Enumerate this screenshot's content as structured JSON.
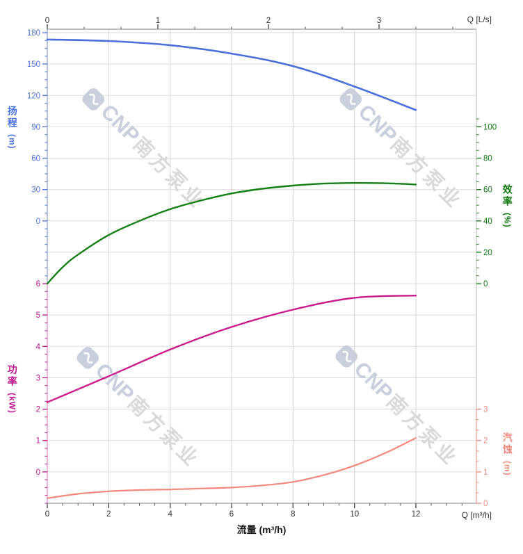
{
  "page": {
    "background": "#ffffff"
  },
  "watermark": {
    "logo_symbol": "∽",
    "logo_text": "CNP",
    "brand_text": "南方泵业",
    "color_logo": "#c9cfdc",
    "color_brand": "#d9d9d9"
  },
  "axes": {
    "x_top": {
      "label": "Q [L/s]",
      "ticks": [
        "0",
        "1",
        "2",
        "3"
      ],
      "tick_color": "#333333"
    },
    "x_bottom": {
      "label": "Q [m³/h]",
      "title": "流量 (m³/h)",
      "ticks": [
        "0",
        "2",
        "4",
        "6",
        "8",
        "10",
        "12"
      ],
      "tick_color": "#333333"
    },
    "y_head": {
      "name": "扬程",
      "unit": "(m)",
      "ticks": [
        "180",
        "150",
        "120",
        "90",
        "60",
        "30",
        "0"
      ],
      "color": "#4a72e0",
      "range": [
        0,
        180
      ]
    },
    "y_efficiency": {
      "name": "效率",
      "unit": "(%)",
      "ticks": [
        "100",
        "80",
        "60",
        "40",
        "20",
        "0"
      ],
      "color": "#0f7a0f",
      "range": [
        0,
        100
      ]
    },
    "y_power": {
      "name": "功率",
      "unit": "(kW)",
      "ticks": [
        "6",
        "5",
        "4",
        "3",
        "2",
        "1",
        "0"
      ],
      "color": "#c0148e",
      "range": [
        0,
        6
      ]
    },
    "y_npsh": {
      "name": "汽蚀",
      "unit": "(m)",
      "ticks": [
        "3",
        "2",
        "1",
        "0"
      ],
      "color": "#f4897b",
      "range": [
        0,
        3
      ]
    }
  },
  "chart_data": {
    "type": "line",
    "x_unit_bottom": "m³/h",
    "x_unit_top": "L/s",
    "x_range_m3h": [
      0,
      13.97
    ],
    "x_ticks_bottom": [
      0,
      2,
      4,
      6,
      8,
      10,
      12
    ],
    "x_ticks_top_Ls": [
      0,
      1,
      2,
      3
    ],
    "grid": true,
    "series": [
      {
        "name": "扬程 (Head)",
        "axis": "head",
        "unit": "m",
        "color": "#4a6fdc",
        "points": [
          [
            0,
            173.5
          ],
          [
            2,
            172
          ],
          [
            4,
            168
          ],
          [
            6,
            160
          ],
          [
            8,
            148
          ],
          [
            10,
            128.5
          ],
          [
            12,
            106
          ]
        ]
      },
      {
        "name": "效率 (Efficiency)",
        "axis": "eff",
        "unit": "%",
        "color": "#128012",
        "points": [
          [
            0,
            0
          ],
          [
            0.5,
            10.5
          ],
          [
            1,
            18.5
          ],
          [
            2,
            31
          ],
          [
            3,
            40
          ],
          [
            4,
            47.5
          ],
          [
            5,
            53
          ],
          [
            6,
            57.5
          ],
          [
            7,
            60.5
          ],
          [
            8,
            62.5
          ],
          [
            9,
            63.8
          ],
          [
            10,
            64.2
          ],
          [
            11,
            64
          ],
          [
            12,
            63.2
          ]
        ]
      },
      {
        "name": "功率 (Power)",
        "axis": "power",
        "unit": "kW",
        "color": "#cb1b8d",
        "points": [
          [
            0,
            2.22
          ],
          [
            2,
            3.05
          ],
          [
            4,
            3.9
          ],
          [
            6,
            4.62
          ],
          [
            8,
            5.17
          ],
          [
            10,
            5.55
          ],
          [
            12,
            5.62
          ]
        ]
      },
      {
        "name": "汽蚀 (NPSH)",
        "axis": "npsh",
        "unit": "m",
        "color": "#f4897b",
        "points": [
          [
            0,
            0.16
          ],
          [
            1,
            0.3
          ],
          [
            2,
            0.38
          ],
          [
            3,
            0.42
          ],
          [
            4,
            0.44
          ],
          [
            5,
            0.47
          ],
          [
            6,
            0.5
          ],
          [
            7,
            0.57
          ],
          [
            8,
            0.68
          ],
          [
            9,
            0.9
          ],
          [
            10,
            1.2
          ],
          [
            11,
            1.6
          ],
          [
            12,
            2.08
          ]
        ]
      }
    ]
  }
}
